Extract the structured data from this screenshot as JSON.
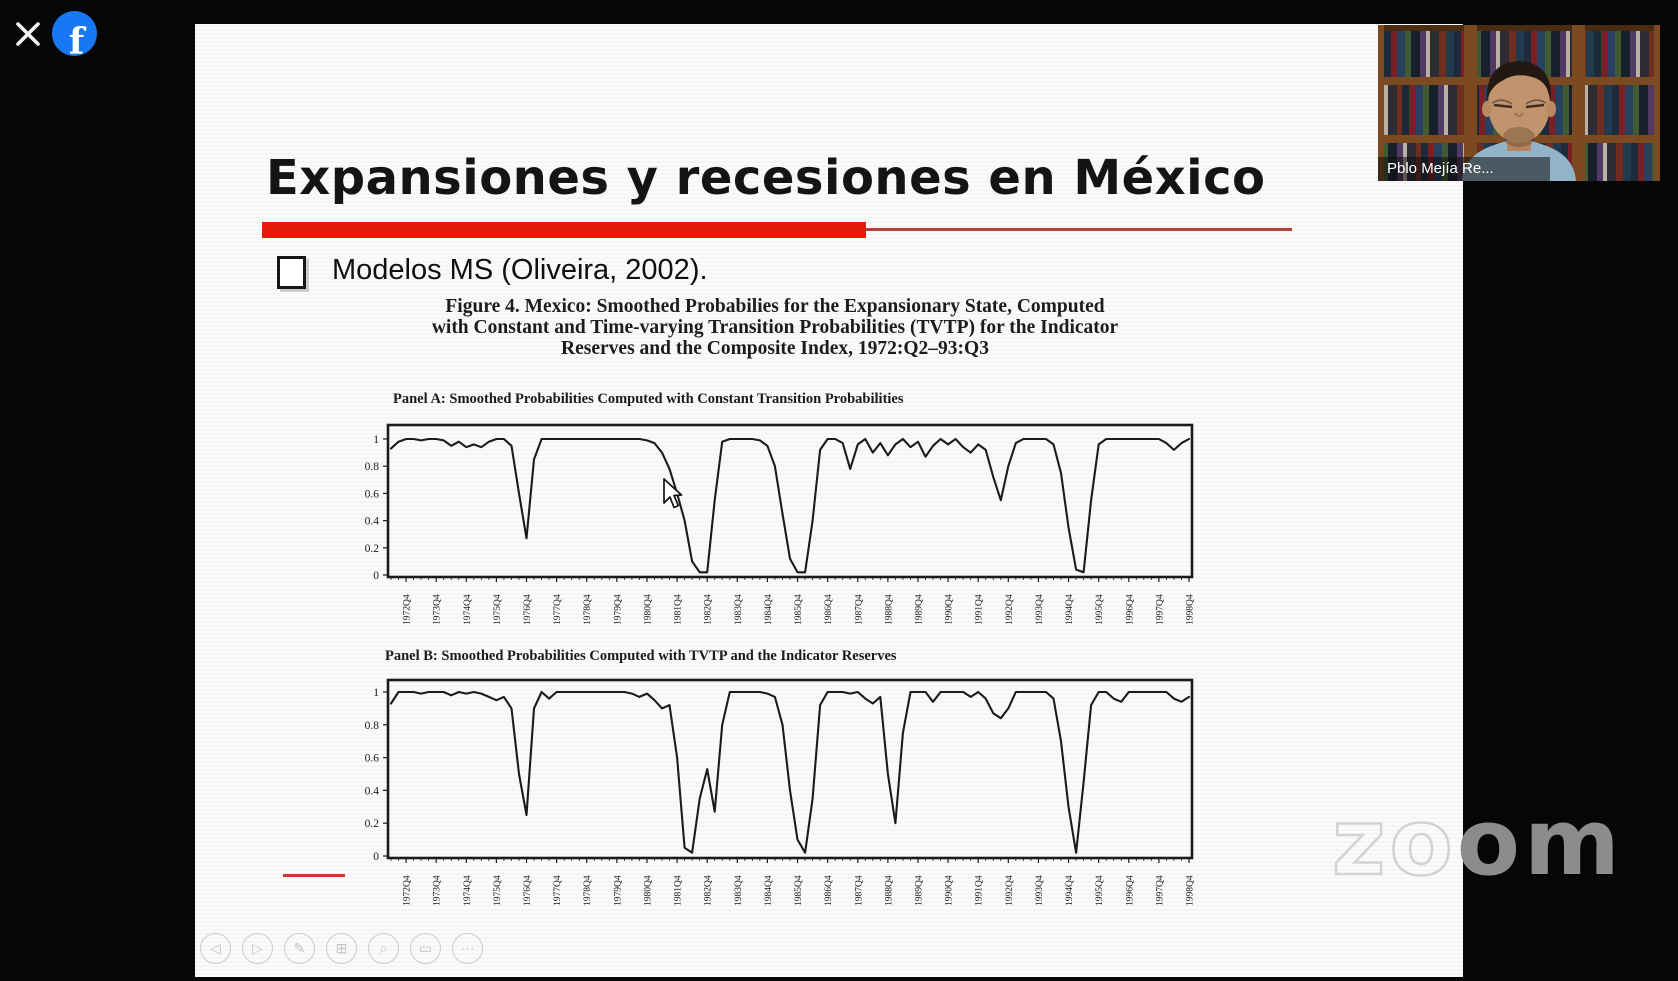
{
  "overlay": {
    "close_icon": "✕",
    "facebook_glyph": "f"
  },
  "participant": {
    "name": "Pblo Mejía Re..."
  },
  "watermark": {
    "left": "zo",
    "right": "om"
  },
  "slide": {
    "title": "Expansiones y recesiones en México",
    "bullet": "Modelos MS (Oliveira, 2002).",
    "figure": {
      "caption_lines": [
        "Figure 4. Mexico: Smoothed Probabilies for the Expansionary State, Computed",
        "with Constant and Time-varying Transition Probabilities (TVTP) for the Indicator",
        "Reserves and the Composite Index, 1972:Q2–93:Q3"
      ]
    }
  },
  "toolbar": {
    "buttons": [
      {
        "name": "previous-slide",
        "glyph": "◁"
      },
      {
        "name": "next-slide",
        "glyph": "▷"
      },
      {
        "name": "pen-tool",
        "glyph": "✎"
      },
      {
        "name": "slide-sorter",
        "glyph": "⊞"
      },
      {
        "name": "magnifier",
        "glyph": "⌕"
      },
      {
        "name": "screen-view",
        "glyph": "▭"
      },
      {
        "name": "more-options",
        "glyph": "⋯"
      }
    ]
  },
  "chart_data": [
    {
      "type": "line",
      "title": "Panel A: Smoothed Probabilities Computed with Constant Transition Probabilities",
      "x_start": "1972:Q2",
      "frequency": "quarterly",
      "ylim": [
        0,
        1
      ],
      "yticks": [
        1,
        0.8,
        0.6,
        0.4,
        0.2,
        0
      ],
      "ytick_labels": [
        "1",
        "0.8",
        "0.6",
        "0.4",
        "0.2",
        "0"
      ],
      "xtick_labels": [
        "1972Q4",
        "1973Q4",
        "1974Q4",
        "1975Q4",
        "1976Q4",
        "1977Q4",
        "1978Q4",
        "1979Q4",
        "1980Q4",
        "1981Q4",
        "1982Q4",
        "1983Q4",
        "1984Q4",
        "1985Q4",
        "1986Q4",
        "1987Q4",
        "1988Q4",
        "1989Q4",
        "1990Q4",
        "1991Q4",
        "1992Q4",
        "1993Q4",
        "1994Q4",
        "1995Q4",
        "1996Q4",
        "1997Q4",
        "1998Q4"
      ],
      "values": [
        0.93,
        0.98,
        1,
        1,
        0.99,
        1,
        1,
        0.99,
        0.95,
        0.98,
        0.94,
        0.96,
        0.94,
        0.98,
        1,
        1,
        0.95,
        0.6,
        0.27,
        0.85,
        1,
        1,
        1,
        1,
        1,
        1,
        1,
        1,
        1,
        1,
        1,
        1,
        1,
        1,
        0.99,
        0.97,
        0.9,
        0.78,
        0.6,
        0.4,
        0.1,
        0.02,
        0.02,
        0.55,
        0.98,
        1,
        1,
        1,
        1,
        0.99,
        0.95,
        0.8,
        0.45,
        0.12,
        0.02,
        0.02,
        0.4,
        0.92,
        1,
        1,
        0.97,
        0.78,
        0.96,
        1,
        0.9,
        0.97,
        0.88,
        0.96,
        1,
        0.94,
        0.98,
        0.87,
        0.95,
        1,
        0.96,
        1,
        0.94,
        0.9,
        0.96,
        0.92,
        0.72,
        0.55,
        0.8,
        0.97,
        1,
        1,
        1,
        1,
        0.96,
        0.75,
        0.35,
        0.04,
        0.02,
        0.55,
        0.96,
        1,
        1,
        1,
        1,
        1,
        1,
        1,
        1,
        0.97,
        0.92,
        0.97,
        1
      ]
    },
    {
      "type": "line",
      "title": "Panel B: Smoothed Probabilities Computed with TVTP and the Indicator Reserves",
      "x_start": "1972:Q2",
      "frequency": "quarterly",
      "ylim": [
        0,
        1
      ],
      "yticks": [
        1,
        0.8,
        0.6,
        0.4,
        0.2,
        0
      ],
      "ytick_labels": [
        "1",
        "0.8",
        "0.6",
        "0.4",
        "0.2",
        "0"
      ],
      "xtick_labels": [
        "1972Q4",
        "1973Q4",
        "1974Q4",
        "1975Q4",
        "1976Q4",
        "1977Q4",
        "1978Q4",
        "1979Q4",
        "1980Q4",
        "1981Q4",
        "1982Q4",
        "1983Q4",
        "1984Q4",
        "1985Q4",
        "1986Q4",
        "1987Q4",
        "1988Q4",
        "1989Q4",
        "1990Q4",
        "1991Q4",
        "1992Q4",
        "1993Q4",
        "1994Q4",
        "1995Q4",
        "1996Q4",
        "1997Q4",
        "1998Q4"
      ],
      "values": [
        0.93,
        1,
        1,
        1,
        0.99,
        1,
        1,
        1,
        0.98,
        1,
        0.99,
        1,
        0.99,
        0.97,
        0.95,
        0.97,
        0.9,
        0.5,
        0.25,
        0.9,
        1,
        0.96,
        1,
        1,
        1,
        1,
        1,
        1,
        1,
        1,
        1,
        1,
        0.99,
        0.97,
        0.99,
        0.95,
        0.9,
        0.92,
        0.6,
        0.05,
        0.02,
        0.35,
        0.53,
        0.27,
        0.8,
        1,
        1,
        1,
        1,
        1,
        0.99,
        0.97,
        0.8,
        0.4,
        0.1,
        0.02,
        0.35,
        0.92,
        1,
        1,
        1,
        0.99,
        1,
        0.96,
        0.93,
        0.97,
        0.5,
        0.2,
        0.75,
        1,
        1,
        1,
        0.94,
        1,
        1,
        1,
        1,
        0.97,
        1,
        0.96,
        0.87,
        0.84,
        0.9,
        1,
        1,
        1,
        1,
        1,
        0.96,
        0.7,
        0.3,
        0.02,
        0.45,
        0.92,
        1,
        1,
        0.96,
        0.94,
        1,
        1,
        1,
        1,
        1,
        1,
        0.96,
        0.94,
        0.97
      ]
    }
  ]
}
